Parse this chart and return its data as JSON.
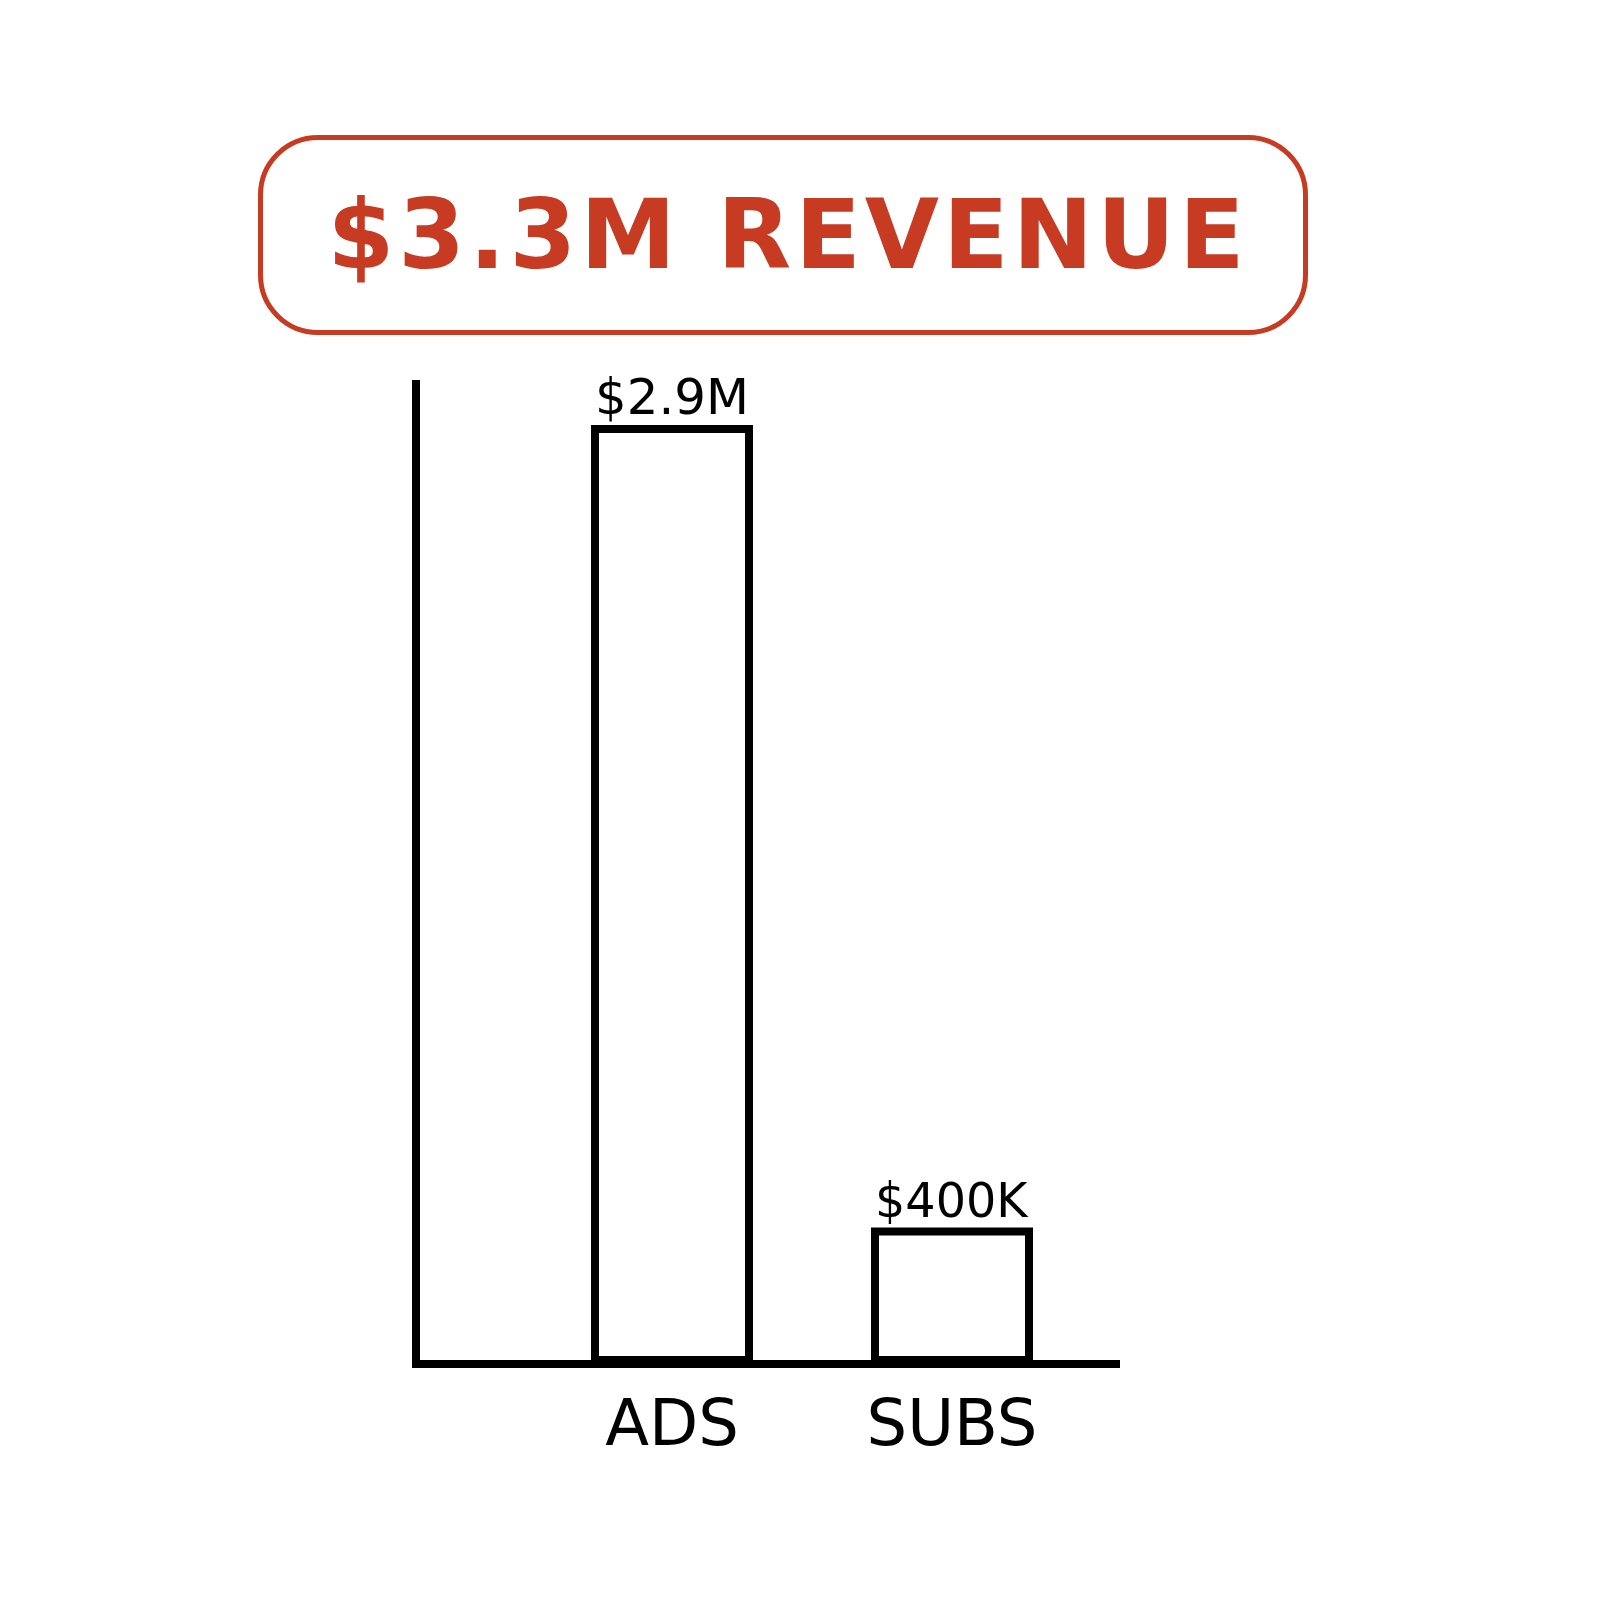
{
  "chart_data": {
    "type": "bar",
    "title": "$3.3M REVENUE",
    "categories": [
      "ADS",
      "SUBS"
    ],
    "values": [
      2900000,
      400000
    ],
    "value_labels": [
      "$2.9M",
      "$400K"
    ],
    "color": "#ffffff",
    "tick_labels": "x",
    "grid": false
  }
}
